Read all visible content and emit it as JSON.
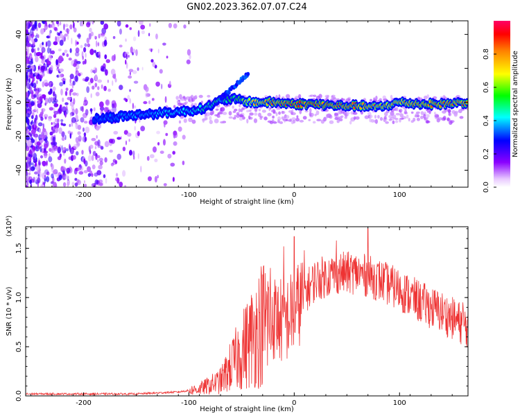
{
  "figure_title": "GN02.2023.362.07.07.C24",
  "chart_data": [
    {
      "type": "heatmap",
      "title": "",
      "xlabel": "Height of straight line (km)",
      "ylabel": "Frequency (Hz)",
      "xlim": [
        -255,
        165
      ],
      "ylim": [
        -50,
        48
      ],
      "xticks": [
        -200,
        -100,
        0,
        100
      ],
      "yticks": [
        -40,
        -20,
        0,
        20,
        40
      ],
      "colorbar": {
        "label": "Normalized spectral amplitude",
        "range": [
          0.0,
          1.0
        ],
        "ticks": [
          "0.0",
          "0.2",
          "0.4",
          "0.6",
          "0.8"
        ],
        "colors": [
          "#ffffff",
          "#8a00ff",
          "#0000ff",
          "#00ffff",
          "#00ff00",
          "#ffff00",
          "#ff8000",
          "#ff0000"
        ]
      },
      "ridge": [
        {
          "x": -190,
          "y": -10,
          "a": 0.35
        },
        {
          "x": -175,
          "y": -9,
          "a": 0.35
        },
        {
          "x": -160,
          "y": -8,
          "a": 0.4
        },
        {
          "x": -140,
          "y": -7,
          "a": 0.4
        },
        {
          "x": -120,
          "y": -6,
          "a": 0.45
        },
        {
          "x": -100,
          "y": -5,
          "a": 0.45
        },
        {
          "x": -90,
          "y": -4,
          "a": 0.5
        },
        {
          "x": -80,
          "y": -2,
          "a": 0.5
        },
        {
          "x": -70,
          "y": 1,
          "a": 0.55
        },
        {
          "x": -60,
          "y": 2,
          "a": 0.55
        },
        {
          "x": -50,
          "y": 1,
          "a": 0.6
        },
        {
          "x": -40,
          "y": 0,
          "a": 0.8
        },
        {
          "x": -20,
          "y": 0,
          "a": 0.9
        },
        {
          "x": 0,
          "y": -1,
          "a": 0.95
        },
        {
          "x": 20,
          "y": -1,
          "a": 0.95
        },
        {
          "x": 40,
          "y": -2,
          "a": 0.9
        },
        {
          "x": 60,
          "y": -2,
          "a": 0.9
        },
        {
          "x": 80,
          "y": -3,
          "a": 0.85
        },
        {
          "x": 100,
          "y": 0,
          "a": 0.85
        },
        {
          "x": 120,
          "y": -1,
          "a": 0.9
        },
        {
          "x": 140,
          "y": -1,
          "a": 0.9
        },
        {
          "x": 165,
          "y": 0,
          "a": 0.9
        }
      ]
    },
    {
      "type": "line",
      "title": "",
      "xlabel": "Height of straight line (km)",
      "ylabel": "SNR (10 * v/v)",
      "y_multiplier": "(x10⁴)",
      "xlim": [
        -255,
        165
      ],
      "ylim": [
        0.0,
        1.72
      ],
      "xticks": [
        -200,
        -100,
        0,
        100
      ],
      "yticks": [
        "0.0",
        "0.5",
        "1.0",
        "1.5"
      ],
      "color": "#ee3333",
      "envelope": [
        {
          "x": -255,
          "y": 0.02
        },
        {
          "x": -150,
          "y": 0.02
        },
        {
          "x": -110,
          "y": 0.04
        },
        {
          "x": -90,
          "y": 0.07
        },
        {
          "x": -70,
          "y": 0.15
        },
        {
          "x": -60,
          "y": 0.3
        },
        {
          "x": -50,
          "y": 0.45
        },
        {
          "x": -40,
          "y": 0.6
        },
        {
          "x": -30,
          "y": 0.75
        },
        {
          "x": -20,
          "y": 0.8
        },
        {
          "x": -10,
          "y": 0.75
        },
        {
          "x": 0,
          "y": 0.85
        },
        {
          "x": 10,
          "y": 1.05
        },
        {
          "x": 20,
          "y": 1.18
        },
        {
          "x": 40,
          "y": 1.25
        },
        {
          "x": 60,
          "y": 1.25
        },
        {
          "x": 80,
          "y": 1.18
        },
        {
          "x": 100,
          "y": 1.08
        },
        {
          "x": 120,
          "y": 0.95
        },
        {
          "x": 140,
          "y": 0.85
        },
        {
          "x": 165,
          "y": 0.7
        }
      ],
      "peaks": [
        {
          "x": 0,
          "y": 1.62
        },
        {
          "x": -10,
          "y": 1.52
        },
        {
          "x": 70,
          "y": 1.7
        },
        {
          "x": 40,
          "y": 1.58
        },
        {
          "x": 160,
          "y": 0.95
        }
      ]
    }
  ]
}
